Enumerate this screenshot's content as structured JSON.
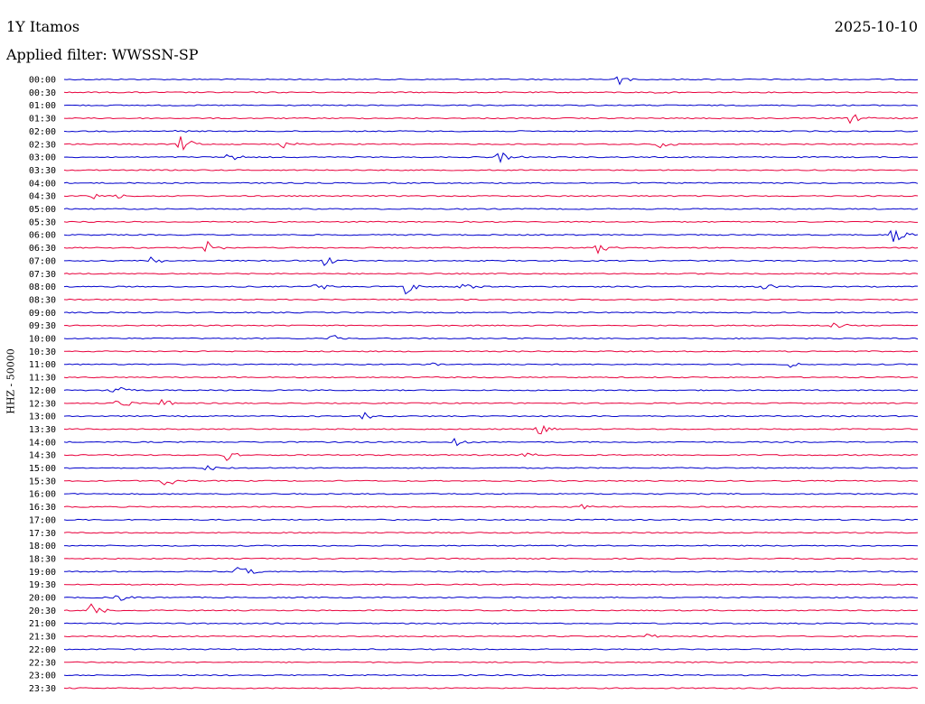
{
  "header": {
    "station": "1Y Itamos",
    "date": "2025-10-10",
    "filter": "Applied filter: WWSSN-SP"
  },
  "chart_data": {
    "type": "helicorder",
    "title": "1Y Itamos",
    "date": "2025-10-10",
    "filter": "WWSSN-SP",
    "ylabel": "HHZ - 50000",
    "tick_labels": [
      "00:00",
      "00:30",
      "01:00",
      "01:30",
      "02:00",
      "02:30",
      "03:00",
      "03:30",
      "04:00",
      "04:30",
      "05:00",
      "05:30",
      "06:00",
      "06:30",
      "07:00",
      "07:30",
      "08:00",
      "08:30",
      "09:00",
      "09:30",
      "10:00",
      "10:30",
      "11:00",
      "11:30",
      "12:00",
      "12:30",
      "13:00",
      "13:30",
      "14:00",
      "14:30",
      "15:00",
      "15:30",
      "16:00",
      "16:30",
      "17:00",
      "17:30",
      "18:00",
      "18:30",
      "19:00",
      "19:30",
      "20:00",
      "20:30",
      "21:00",
      "21:30",
      "22:00",
      "22:30",
      "23:00",
      "23:30"
    ],
    "trace_colors": [
      "#0000cc",
      "#e8003c"
    ],
    "events": [
      {
        "row": 0,
        "pos": 0.647,
        "amp": 8
      },
      {
        "row": 1,
        "pos": 0.69,
        "amp": 2
      },
      {
        "row": 3,
        "pos": 0.92,
        "amp": 7
      },
      {
        "row": 4,
        "pos": 0.13,
        "amp": 3
      },
      {
        "row": 5,
        "pos": 0.135,
        "amp": 12
      },
      {
        "row": 5,
        "pos": 0.255,
        "amp": 6
      },
      {
        "row": 5,
        "pos": 0.697,
        "amp": 6
      },
      {
        "row": 6,
        "pos": 0.192,
        "amp": 5
      },
      {
        "row": 6,
        "pos": 0.508,
        "amp": 8
      },
      {
        "row": 9,
        "pos": 0.034,
        "amp": 4
      },
      {
        "row": 9,
        "pos": 0.061,
        "amp": 3
      },
      {
        "row": 12,
        "pos": 0.97,
        "amp": 12
      },
      {
        "row": 13,
        "pos": 0.166,
        "amp": 8
      },
      {
        "row": 13,
        "pos": 0.624,
        "amp": 8
      },
      {
        "row": 14,
        "pos": 0.1,
        "amp": 6
      },
      {
        "row": 14,
        "pos": 0.305,
        "amp": 6
      },
      {
        "row": 16,
        "pos": 0.295,
        "amp": 6
      },
      {
        "row": 16,
        "pos": 0.4,
        "amp": 8
      },
      {
        "row": 16,
        "pos": 0.465,
        "amp": 6
      },
      {
        "row": 16,
        "pos": 0.82,
        "amp": 5
      },
      {
        "row": 19,
        "pos": 0.9,
        "amp": 5
      },
      {
        "row": 20,
        "pos": 0.31,
        "amp": 6
      },
      {
        "row": 22,
        "pos": 0.43,
        "amp": 4
      },
      {
        "row": 22,
        "pos": 0.85,
        "amp": 4
      },
      {
        "row": 24,
        "pos": 0.057,
        "amp": 8
      },
      {
        "row": 25,
        "pos": 0.06,
        "amp": 9
      },
      {
        "row": 25,
        "pos": 0.112,
        "amp": 7
      },
      {
        "row": 26,
        "pos": 0.35,
        "amp": 5
      },
      {
        "row": 27,
        "pos": 0.553,
        "amp": 9
      },
      {
        "row": 28,
        "pos": 0.457,
        "amp": 7
      },
      {
        "row": 29,
        "pos": 0.19,
        "amp": 6
      },
      {
        "row": 29,
        "pos": 0.538,
        "amp": 5
      },
      {
        "row": 30,
        "pos": 0.167,
        "amp": 5
      },
      {
        "row": 31,
        "pos": 0.117,
        "amp": 8
      },
      {
        "row": 33,
        "pos": 0.605,
        "amp": 7
      },
      {
        "row": 38,
        "pos": 0.203,
        "amp": 10
      },
      {
        "row": 40,
        "pos": 0.06,
        "amp": 7
      },
      {
        "row": 41,
        "pos": 0.031,
        "amp": 8
      },
      {
        "row": 43,
        "pos": 0.683,
        "amp": 3
      }
    ]
  }
}
